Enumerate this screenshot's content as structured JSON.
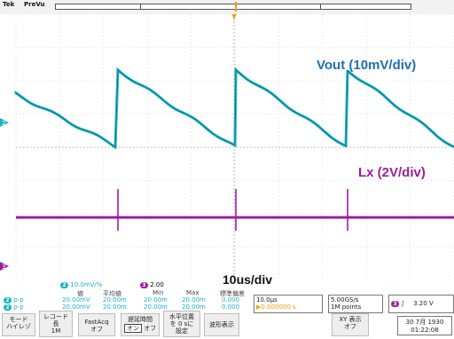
{
  "header": {
    "brand": "Tek",
    "status": "PreVu"
  },
  "annotations": {
    "vout": "Vout (10mV/div)",
    "lx": "Lx (2V/div)",
    "timebase": "10us/div"
  },
  "channels": {
    "ch2": {
      "marker": "2",
      "color": "#18b3c4",
      "scale": "10.0mV/%",
      "badge": "2"
    },
    "ch3": {
      "marker": "3",
      "color": "#9a1f9c",
      "scale": "2.00",
      "badge": "3"
    }
  },
  "measurements": {
    "headers": [
      "値",
      "平均値",
      "Min",
      "Max",
      "標準偏差"
    ],
    "rows": [
      {
        "badge": "2",
        "label": "p-p",
        "values": [
          "20.00mV",
          "20.00m",
          "20.00m",
          "20.00m",
          "0.000"
        ]
      },
      {
        "badge": "2",
        "label": "p-p",
        "values": [
          "20.00mV",
          "20.00m",
          "20.00m",
          "20.00m",
          "0.000"
        ]
      }
    ]
  },
  "timebase": {
    "value": "10.0μs",
    "delay": "▶0.000000 s"
  },
  "acquisition": {
    "rate": "5.00GS/s",
    "points": "1M points"
  },
  "trigger": {
    "source": "3",
    "slope": "∫",
    "level": "3.20 V"
  },
  "buttons": {
    "mode": "モード\nハイレゾ",
    "record": "レコード\n長\n1M",
    "fastacq": "FastAcq\nオフ",
    "delay": "遅延時間",
    "delay_on": "オン",
    "delay_off": "オフ",
    "hpos": "水平位置\nを 0 sに\n設定",
    "waveform": "波形表示",
    "xy": "XY 表示\nオフ"
  },
  "datetime": {
    "date": "30 7月 1930",
    "time": "01:22:08"
  }
}
